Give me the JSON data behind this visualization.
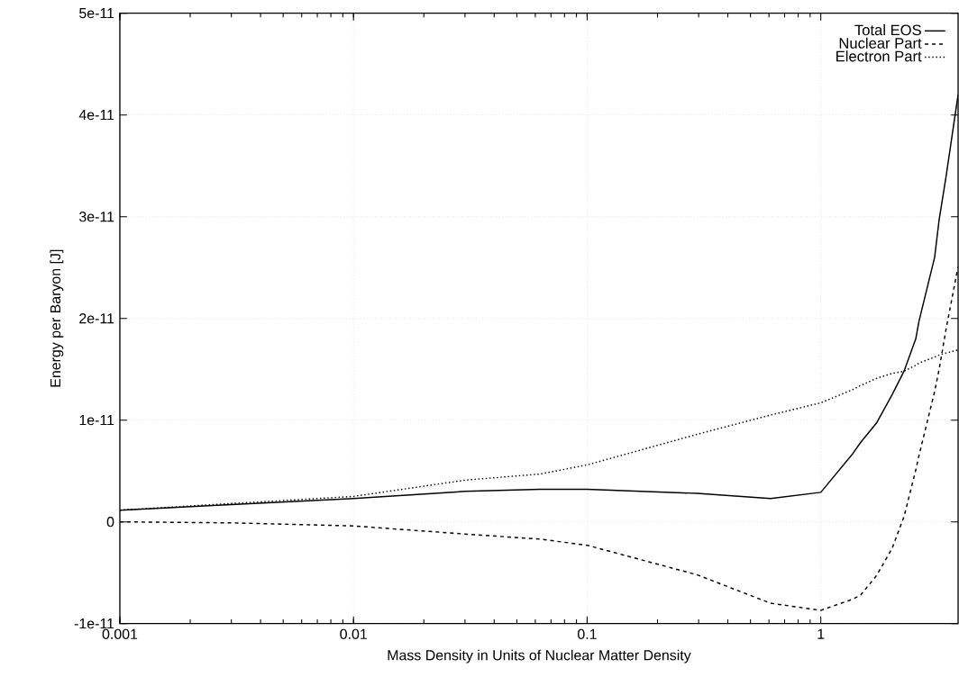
{
  "chart_data": {
    "type": "line",
    "xlabel": "Mass Density in Units of Nuclear Matter Density",
    "ylabel": "Energy per Baryon [J]",
    "log": "x",
    "grid": true,
    "legend": "top right",
    "xlim": [
      0.001,
      3.87
    ],
    "xticks": [
      0.001,
      0.01,
      0.1,
      1
    ],
    "ylim": [
      -1e-11,
      5e-11
    ],
    "yticks": [
      {
        "value": -1e-11,
        "label": "-1e-11"
      },
      {
        "value": 0,
        "label": "0"
      },
      {
        "value": 1e-11,
        "label": "1e-11"
      },
      {
        "value": 2e-11,
        "label": "2e-11"
      },
      {
        "value": 3e-11,
        "label": "3e-11"
      },
      {
        "value": 4e-11,
        "label": "4e-11"
      },
      {
        "value": 5e-11,
        "label": "5e-11"
      }
    ],
    "x": [
      0.001,
      0.003,
      0.01,
      0.03,
      0.063,
      0.1,
      0.295,
      0.61,
      1,
      1.37,
      1.48,
      1.73,
      2.02,
      2.27,
      2.55,
      2.63,
      3.07,
      3.21,
      3.44,
      3.87
    ],
    "series": [
      {
        "name": "Total EOS",
        "color": "#000000",
        "line_style": "solid",
        "values": [
          1.15e-12,
          1.7e-12,
          2.3e-12,
          3e-12,
          3.2e-12,
          3.2e-12,
          2.8e-12,
          2.3e-12,
          2.9e-12,
          6.7e-12,
          7.8e-12,
          9.7e-12,
          1.25e-11,
          1.48e-11,
          1.8e-11,
          1.97e-11,
          2.6e-11,
          2.97e-11,
          3.4e-11,
          4.2e-11
        ]
      },
      {
        "name": "Nuclear Part",
        "color": "#000000",
        "line_style": "dashed",
        "values": [
          0,
          -1e-13,
          -4e-13,
          -1.2e-12,
          -1.7e-12,
          -2.3e-12,
          -5.2e-12,
          -8e-12,
          -8.7e-12,
          -7.6e-12,
          -7.2e-12,
          -5.3e-12,
          -2.6e-12,
          5e-13,
          5.1e-12,
          6.5e-12,
          1.28e-11,
          1.5e-11,
          1.9e-11,
          2.51e-11
        ]
      },
      {
        "name": "Electron Part",
        "color": "#000000",
        "line_style": "dotted",
        "values": [
          1.15e-12,
          1.8e-12,
          2.5e-12,
          4.1e-12,
          4.7e-12,
          5.6e-12,
          8.6e-12,
          1.05e-11,
          1.17e-11,
          1.3e-11,
          1.34e-11,
          1.41e-11,
          1.46e-11,
          1.48e-11,
          1.54e-11,
          1.56e-11,
          1.62e-11,
          1.64e-11,
          1.66e-11,
          1.69e-11
        ]
      }
    ]
  }
}
